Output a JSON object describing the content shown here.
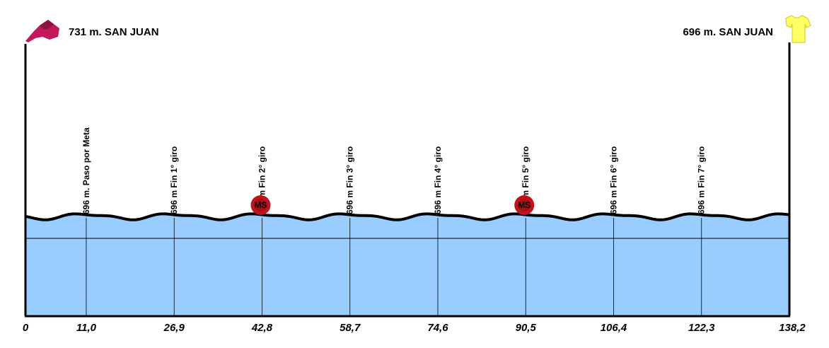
{
  "start": {
    "label": "731 m. SAN JUAN",
    "icon": "start-flag-icon"
  },
  "finish": {
    "label": "696 m. SAN JUAN",
    "icon": "yellow-jersey-icon"
  },
  "colors": {
    "fill": "#99ccff",
    "line": "#000000",
    "ms_badge": "#c0141c",
    "start_flag": "#c2185b",
    "jersey": "#ffff66"
  },
  "chart_data": {
    "type": "area",
    "title": "",
    "xlabel": "",
    "ylabel": "",
    "x_ticks": [
      "0",
      "11,0",
      "26,9",
      "42,8",
      "58,7",
      "74,6",
      "90,5",
      "106,4",
      "122,3",
      "138,2"
    ],
    "xlim": [
      0,
      138.2
    ],
    "profile": {
      "x": [
        0,
        11.0,
        26.9,
        42.8,
        58.7,
        74.6,
        90.5,
        106.4,
        122.3,
        138.2
      ],
      "y": [
        731,
        696,
        696,
        696,
        696,
        696,
        696,
        696,
        696,
        696
      ]
    },
    "points": [
      {
        "km": 11.0,
        "label": "696  m. Paso por Meta"
      },
      {
        "km": 26.9,
        "label": "696  m Fin 1° giro"
      },
      {
        "km": 42.8,
        "label": "696  m Fin 2° giro",
        "badge": "MS"
      },
      {
        "km": 58.7,
        "label": "696  m Fin 3° giro"
      },
      {
        "km": 74.6,
        "label": "696  m Fin 4° giro"
      },
      {
        "km": 90.5,
        "label": "696  m Fin 5° giro",
        "badge": "MS"
      },
      {
        "km": 106.4,
        "label": "696  m Fin 6° giro"
      },
      {
        "km": 122.3,
        "label": "696  m Fin 7° giro"
      }
    ]
  }
}
